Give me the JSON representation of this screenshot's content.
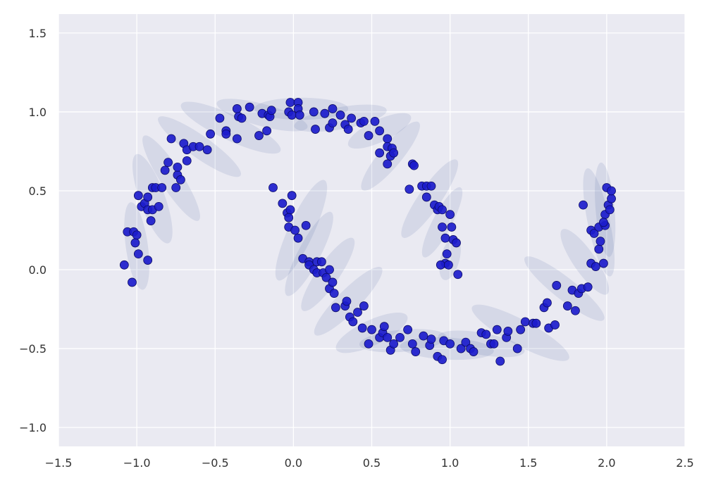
{
  "chart_data": {
    "type": "scatter",
    "title": "",
    "xlabel": "",
    "ylabel": "",
    "xlim": [
      -1.5,
      2.5
    ],
    "ylim": [
      -1.12,
      1.62
    ],
    "grid": true,
    "legend": "none",
    "colors": {
      "background": "#eaeaf2",
      "grid": "#ffffff",
      "point": "#1c1ccc",
      "point_edge": "#0b0b66",
      "ellipse": "#1f3c88"
    },
    "x_ticks": [
      {
        "value": -1.5,
        "label": "−1.5"
      },
      {
        "value": -1.0,
        "label": "−1.0"
      },
      {
        "value": -0.5,
        "label": "−0.5"
      },
      {
        "value": 0.0,
        "label": "0.0"
      },
      {
        "value": 0.5,
        "label": "0.5"
      },
      {
        "value": 1.0,
        "label": "1.0"
      },
      {
        "value": 1.5,
        "label": "1.5"
      },
      {
        "value": 2.0,
        "label": "2.0"
      },
      {
        "value": 2.5,
        "label": "2.5"
      }
    ],
    "y_ticks": [
      {
        "value": -1.0,
        "label": "−1.0"
      },
      {
        "value": -0.5,
        "label": "−0.5"
      },
      {
        "value": 0.0,
        "label": "0.0"
      },
      {
        "value": 0.5,
        "label": "0.5"
      },
      {
        "value": 1.0,
        "label": "1.0"
      },
      {
        "value": 1.5,
        "label": "1.5"
      }
    ],
    "ellipses": [
      {
        "cx": -1.0,
        "cy": 0.15,
        "rx": 0.28,
        "ry": 0.07,
        "angle": -82
      },
      {
        "cx": -0.9,
        "cy": 0.45,
        "rx": 0.3,
        "ry": 0.08,
        "angle": -70
      },
      {
        "cx": -0.78,
        "cy": 0.58,
        "rx": 0.32,
        "ry": 0.07,
        "angle": -57
      },
      {
        "cx": -0.6,
        "cy": 0.78,
        "rx": 0.32,
        "ry": 0.07,
        "angle": -35
      },
      {
        "cx": -0.4,
        "cy": 0.9,
        "rx": 0.35,
        "ry": 0.08,
        "angle": -25
      },
      {
        "cx": -0.2,
        "cy": 0.98,
        "rx": 0.3,
        "ry": 0.07,
        "angle": -15
      },
      {
        "cx": 0.05,
        "cy": 1.02,
        "rx": 0.3,
        "ry": 0.07,
        "angle": 0
      },
      {
        "cx": 0.3,
        "cy": 0.96,
        "rx": 0.3,
        "ry": 0.07,
        "angle": 10
      },
      {
        "cx": 0.55,
        "cy": 0.88,
        "rx": 0.22,
        "ry": 0.07,
        "angle": 25
      },
      {
        "cx": 0.62,
        "cy": 0.72,
        "rx": 0.28,
        "ry": 0.07,
        "angle": 50
      },
      {
        "cx": 0.87,
        "cy": 0.45,
        "rx": 0.3,
        "ry": 0.07,
        "angle": 55
      },
      {
        "cx": 0.95,
        "cy": 0.3,
        "rx": 0.25,
        "ry": 0.06,
        "angle": 62
      },
      {
        "cx": 1.0,
        "cy": 0.07,
        "rx": 0.14,
        "ry": 0.06,
        "angle": 75
      },
      {
        "cx": 0.05,
        "cy": 0.25,
        "rx": 0.35,
        "ry": 0.08,
        "angle": 65
      },
      {
        "cx": 0.1,
        "cy": 0.1,
        "rx": 0.3,
        "ry": 0.07,
        "angle": 62
      },
      {
        "cx": 0.22,
        "cy": -0.03,
        "rx": 0.28,
        "ry": 0.07,
        "angle": 55
      },
      {
        "cx": 0.35,
        "cy": -0.2,
        "rx": 0.3,
        "ry": 0.07,
        "angle": 45
      },
      {
        "cx": 0.5,
        "cy": -0.4,
        "rx": 0.25,
        "ry": 0.08,
        "angle": 25
      },
      {
        "cx": 0.7,
        "cy": -0.45,
        "rx": 0.28,
        "ry": 0.07,
        "angle": 5
      },
      {
        "cx": 0.98,
        "cy": -0.5,
        "rx": 0.3,
        "ry": 0.07,
        "angle": -3
      },
      {
        "cx": 1.2,
        "cy": -0.47,
        "rx": 0.28,
        "ry": 0.07,
        "angle": -10
      },
      {
        "cx": 1.45,
        "cy": -0.4,
        "rx": 0.35,
        "ry": 0.08,
        "angle": -28
      },
      {
        "cx": 1.73,
        "cy": -0.12,
        "rx": 0.32,
        "ry": 0.07,
        "angle": -38
      },
      {
        "cx": 1.86,
        "cy": 0.05,
        "rx": 0.25,
        "ry": 0.07,
        "angle": -55
      },
      {
        "cx": 1.95,
        "cy": 0.3,
        "rx": 0.35,
        "ry": 0.07,
        "angle": -78
      },
      {
        "cx": 1.99,
        "cy": 0.38,
        "rx": 0.3,
        "ry": 0.06,
        "angle": -85
      }
    ],
    "points": [
      [
        -1.08,
        0.03
      ],
      [
        -1.03,
        -0.08
      ],
      [
        -1.06,
        0.24
      ],
      [
        -1.02,
        0.24
      ],
      [
        -1.01,
        0.17
      ],
      [
        -1.0,
        0.22
      ],
      [
        -0.99,
        0.1
      ],
      [
        -0.93,
        0.06
      ],
      [
        -0.99,
        0.47
      ],
      [
        -0.97,
        0.4
      ],
      [
        -0.95,
        0.42
      ],
      [
        -0.93,
        0.38
      ],
      [
        -0.9,
        0.38
      ],
      [
        -0.93,
        0.46
      ],
      [
        -0.9,
        0.52
      ],
      [
        -0.88,
        0.52
      ],
      [
        -0.86,
        0.4
      ],
      [
        -0.91,
        0.31
      ],
      [
        -0.84,
        0.52
      ],
      [
        -0.82,
        0.63
      ],
      [
        -0.8,
        0.68
      ],
      [
        -0.78,
        0.83
      ],
      [
        -0.75,
        0.52
      ],
      [
        -0.74,
        0.6
      ],
      [
        -0.72,
        0.57
      ],
      [
        -0.74,
        0.65
      ],
      [
        -0.7,
        0.8
      ],
      [
        -0.68,
        0.76
      ],
      [
        -0.68,
        0.69
      ],
      [
        -0.64,
        0.78
      ],
      [
        -0.6,
        0.78
      ],
      [
        -0.55,
        0.76
      ],
      [
        -0.53,
        0.86
      ],
      [
        -0.47,
        0.96
      ],
      [
        -0.43,
        0.88
      ],
      [
        -0.43,
        0.86
      ],
      [
        -0.36,
        0.83
      ],
      [
        -0.36,
        1.02
      ],
      [
        -0.35,
        0.97
      ],
      [
        -0.33,
        0.96
      ],
      [
        -0.28,
        1.03
      ],
      [
        -0.22,
        0.85
      ],
      [
        -0.2,
        0.99
      ],
      [
        -0.16,
        0.98
      ],
      [
        -0.17,
        0.88
      ],
      [
        -0.15,
        0.97
      ],
      [
        -0.14,
        1.01
      ],
      [
        -0.02,
        1.06
      ],
      [
        -0.03,
        1.0
      ],
      [
        -0.01,
        0.98
      ],
      [
        0.03,
        1.06
      ],
      [
        0.03,
        1.02
      ],
      [
        0.04,
        0.98
      ],
      [
        0.13,
        1.0
      ],
      [
        0.14,
        0.89
      ],
      [
        0.2,
        0.99
      ],
      [
        0.23,
        0.9
      ],
      [
        0.25,
        0.93
      ],
      [
        0.25,
        1.02
      ],
      [
        0.3,
        0.98
      ],
      [
        0.33,
        0.92
      ],
      [
        0.35,
        0.89
      ],
      [
        0.37,
        0.96
      ],
      [
        0.43,
        0.93
      ],
      [
        0.45,
        0.94
      ],
      [
        0.48,
        0.85
      ],
      [
        0.52,
        0.94
      ],
      [
        0.55,
        0.88
      ],
      [
        0.55,
        0.74
      ],
      [
        0.6,
        0.83
      ],
      [
        0.6,
        0.78
      ],
      [
        0.6,
        0.67
      ],
      [
        0.62,
        0.72
      ],
      [
        0.63,
        0.77
      ],
      [
        0.64,
        0.74
      ],
      [
        0.74,
        0.51
      ],
      [
        0.76,
        0.67
      ],
      [
        0.77,
        0.66
      ],
      [
        0.82,
        0.53
      ],
      [
        0.85,
        0.53
      ],
      [
        0.85,
        0.46
      ],
      [
        0.88,
        0.53
      ],
      [
        0.9,
        0.41
      ],
      [
        0.92,
        0.38
      ],
      [
        0.93,
        0.4
      ],
      [
        0.95,
        0.27
      ],
      [
        0.95,
        0.38
      ],
      [
        1.0,
        0.35
      ],
      [
        0.97,
        0.2
      ],
      [
        1.01,
        0.27
      ],
      [
        1.02,
        0.19
      ],
      [
        1.04,
        0.17
      ],
      [
        0.98,
        0.1
      ],
      [
        0.97,
        0.04
      ],
      [
        0.94,
        0.03
      ],
      [
        0.99,
        0.03
      ],
      [
        1.05,
        -0.03
      ],
      [
        -0.13,
        0.52
      ],
      [
        -0.07,
        0.42
      ],
      [
        -0.04,
        0.36
      ],
      [
        -0.02,
        0.38
      ],
      [
        -0.03,
        0.33
      ],
      [
        -0.03,
        0.27
      ],
      [
        -0.01,
        0.47
      ],
      [
        0.01,
        0.25
      ],
      [
        0.03,
        0.2
      ],
      [
        0.08,
        0.28
      ],
      [
        0.06,
        0.07
      ],
      [
        0.1,
        0.05
      ],
      [
        0.1,
        0.03
      ],
      [
        0.13,
        0.0
      ],
      [
        0.15,
        0.05
      ],
      [
        0.15,
        -0.02
      ],
      [
        0.18,
        0.05
      ],
      [
        0.19,
        -0.02
      ],
      [
        0.21,
        -0.05
      ],
      [
        0.23,
        0.0
      ],
      [
        0.23,
        -0.12
      ],
      [
        0.25,
        -0.08
      ],
      [
        0.26,
        -0.15
      ],
      [
        0.27,
        -0.24
      ],
      [
        0.33,
        -0.23
      ],
      [
        0.34,
        -0.2
      ],
      [
        0.36,
        -0.3
      ],
      [
        0.38,
        -0.33
      ],
      [
        0.41,
        -0.27
      ],
      [
        0.45,
        -0.23
      ],
      [
        0.44,
        -0.37
      ],
      [
        0.48,
        -0.47
      ],
      [
        0.5,
        -0.38
      ],
      [
        0.55,
        -0.43
      ],
      [
        0.57,
        -0.4
      ],
      [
        0.58,
        -0.36
      ],
      [
        0.6,
        -0.43
      ],
      [
        0.62,
        -0.51
      ],
      [
        0.64,
        -0.47
      ],
      [
        0.68,
        -0.43
      ],
      [
        0.73,
        -0.38
      ],
      [
        0.76,
        -0.47
      ],
      [
        0.78,
        -0.52
      ],
      [
        0.83,
        -0.42
      ],
      [
        0.87,
        -0.48
      ],
      [
        0.88,
        -0.44
      ],
      [
        0.92,
        -0.55
      ],
      [
        0.95,
        -0.57
      ],
      [
        0.96,
        -0.45
      ],
      [
        1.0,
        -0.47
      ],
      [
        1.07,
        -0.5
      ],
      [
        1.1,
        -0.46
      ],
      [
        1.13,
        -0.5
      ],
      [
        1.15,
        -0.52
      ],
      [
        1.2,
        -0.4
      ],
      [
        1.23,
        -0.41
      ],
      [
        1.26,
        -0.47
      ],
      [
        1.28,
        -0.47
      ],
      [
        1.3,
        -0.38
      ],
      [
        1.32,
        -0.58
      ],
      [
        1.36,
        -0.43
      ],
      [
        1.37,
        -0.39
      ],
      [
        1.43,
        -0.5
      ],
      [
        1.45,
        -0.38
      ],
      [
        1.48,
        -0.33
      ],
      [
        1.53,
        -0.34
      ],
      [
        1.55,
        -0.34
      ],
      [
        1.6,
        -0.24
      ],
      [
        1.62,
        -0.21
      ],
      [
        1.63,
        -0.37
      ],
      [
        1.67,
        -0.35
      ],
      [
        1.68,
        -0.1
      ],
      [
        1.75,
        -0.23
      ],
      [
        1.78,
        -0.13
      ],
      [
        1.8,
        -0.26
      ],
      [
        1.82,
        -0.15
      ],
      [
        1.84,
        -0.12
      ],
      [
        1.85,
        0.41
      ],
      [
        1.88,
        -0.11
      ],
      [
        1.9,
        0.04
      ],
      [
        1.9,
        0.25
      ],
      [
        1.92,
        0.23
      ],
      [
        1.93,
        0.02
      ],
      [
        1.95,
        0.27
      ],
      [
        1.95,
        0.13
      ],
      [
        1.96,
        0.18
      ],
      [
        1.98,
        0.04
      ],
      [
        1.99,
        0.35
      ],
      [
        1.99,
        0.28
      ],
      [
        2.0,
        0.52
      ],
      [
        2.01,
        0.41
      ],
      [
        2.02,
        0.38
      ],
      [
        2.03,
        0.45
      ],
      [
        2.03,
        0.5
      ],
      [
        1.98,
        0.3
      ]
    ]
  }
}
